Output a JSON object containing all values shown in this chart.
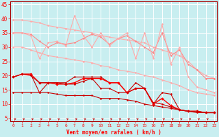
{
  "xlabel": "Vent moyen/en rafales ( km/h )",
  "x": [
    0,
    1,
    2,
    3,
    4,
    5,
    6,
    7,
    8,
    9,
    10,
    11,
    12,
    13,
    14,
    15,
    16,
    17,
    18,
    19,
    20,
    21,
    22,
    23
  ],
  "ylim": [
    4,
    46
  ],
  "xlim": [
    -0.3,
    23.3
  ],
  "background_color": "#c8eef0",
  "grid_color": "#ffffff",
  "line1": {
    "y": [
      39.5,
      39.5,
      39.0,
      38.5,
      37.5,
      37.0,
      36.5,
      36.0,
      35.5,
      35.0,
      34.0,
      33.5,
      33.0,
      32.5,
      32.0,
      31.5,
      30.0,
      29.0,
      28.0,
      27.0,
      25.0,
      22.0,
      20.0,
      19.0
    ],
    "color": "#ffaaaa",
    "lw": 0.8,
    "marker": "D",
    "ms": 1.5
  },
  "line2": {
    "y": [
      35.0,
      35.0,
      34.5,
      32.0,
      30.0,
      31.5,
      31.0,
      31.5,
      33.0,
      34.5,
      33.5,
      31.0,
      33.0,
      34.0,
      32.0,
      30.0,
      28.0,
      35.0,
      27.0,
      29.0,
      24.0,
      22.0,
      19.0,
      19.0
    ],
    "color": "#ff8888",
    "lw": 0.8,
    "marker": "D",
    "ms": 1.5
  },
  "line3": {
    "y": [
      35.0,
      35.0,
      34.0,
      26.0,
      31.5,
      32.0,
      30.5,
      41.0,
      34.0,
      30.0,
      35.0,
      30.5,
      33.0,
      35.0,
      26.0,
      35.0,
      26.0,
      38.0,
      24.0,
      30.0,
      19.5,
      16.0,
      15.0,
      14.0
    ],
    "color": "#ffaaaa",
    "lw": 0.8,
    "marker": "D",
    "ms": 1.5
  },
  "line4": {
    "y": [
      30.0,
      30.0,
      29.0,
      28.0,
      27.0,
      26.5,
      26.0,
      25.5,
      25.0,
      24.5,
      23.5,
      23.0,
      22.0,
      21.5,
      21.0,
      20.0,
      19.5,
      18.5,
      17.5,
      16.5,
      15.0,
      14.0,
      13.5,
      13.0
    ],
    "color": "#ffaaaa",
    "lw": 0.8,
    "marker": "D",
    "ms": 1.5
  },
  "line5": {
    "y": [
      19.5,
      20.5,
      20.5,
      14.0,
      17.5,
      17.5,
      17.5,
      19.5,
      19.5,
      19.5,
      19.5,
      17.5,
      17.5,
      14.0,
      17.5,
      15.5,
      10.0,
      14.0,
      13.5,
      8.0,
      7.5,
      7.5,
      7.0,
      7.0
    ],
    "color": "#cc0000",
    "lw": 0.8,
    "marker": "D",
    "ms": 1.5
  },
  "line6": {
    "y": [
      19.5,
      20.5,
      20.5,
      17.5,
      17.5,
      17.0,
      17.0,
      17.5,
      19.0,
      19.0,
      19.0,
      17.5,
      17.5,
      14.0,
      15.5,
      15.5,
      10.0,
      12.0,
      9.5,
      8.0,
      7.5,
      7.5,
      7.0,
      7.0
    ],
    "color": "#ff0000",
    "lw": 1.0,
    "marker": "D",
    "ms": 2.0
  },
  "line7": {
    "y": [
      19.5,
      20.5,
      20.0,
      17.5,
      17.5,
      17.5,
      17.0,
      17.0,
      18.0,
      19.0,
      15.5,
      15.5,
      14.0,
      14.0,
      15.5,
      15.5,
      10.5,
      10.0,
      9.0,
      8.0,
      7.5,
      7.5,
      7.0,
      7.0
    ],
    "color": "#cc0000",
    "lw": 0.8,
    "marker": "D",
    "ms": 1.5
  },
  "line8": {
    "y": [
      14.0,
      14.0,
      14.0,
      14.0,
      14.0,
      13.5,
      13.0,
      13.0,
      13.0,
      13.0,
      12.0,
      12.0,
      12.0,
      11.5,
      11.0,
      10.0,
      9.5,
      9.0,
      8.5,
      8.0,
      7.5,
      7.0,
      7.0,
      7.0
    ],
    "color": "#cc0000",
    "lw": 0.8,
    "marker": "D",
    "ms": 1.5
  },
  "yticks": [
    5,
    10,
    15,
    20,
    25,
    30,
    35,
    40,
    45
  ],
  "xticks": [
    0,
    1,
    2,
    3,
    4,
    5,
    6,
    7,
    8,
    9,
    10,
    11,
    12,
    13,
    14,
    15,
    16,
    17,
    18,
    19,
    20,
    21,
    22,
    23
  ],
  "label_fontsize": 5.5,
  "tick_fontsize_x": 4.5,
  "tick_fontsize_y": 5.5
}
